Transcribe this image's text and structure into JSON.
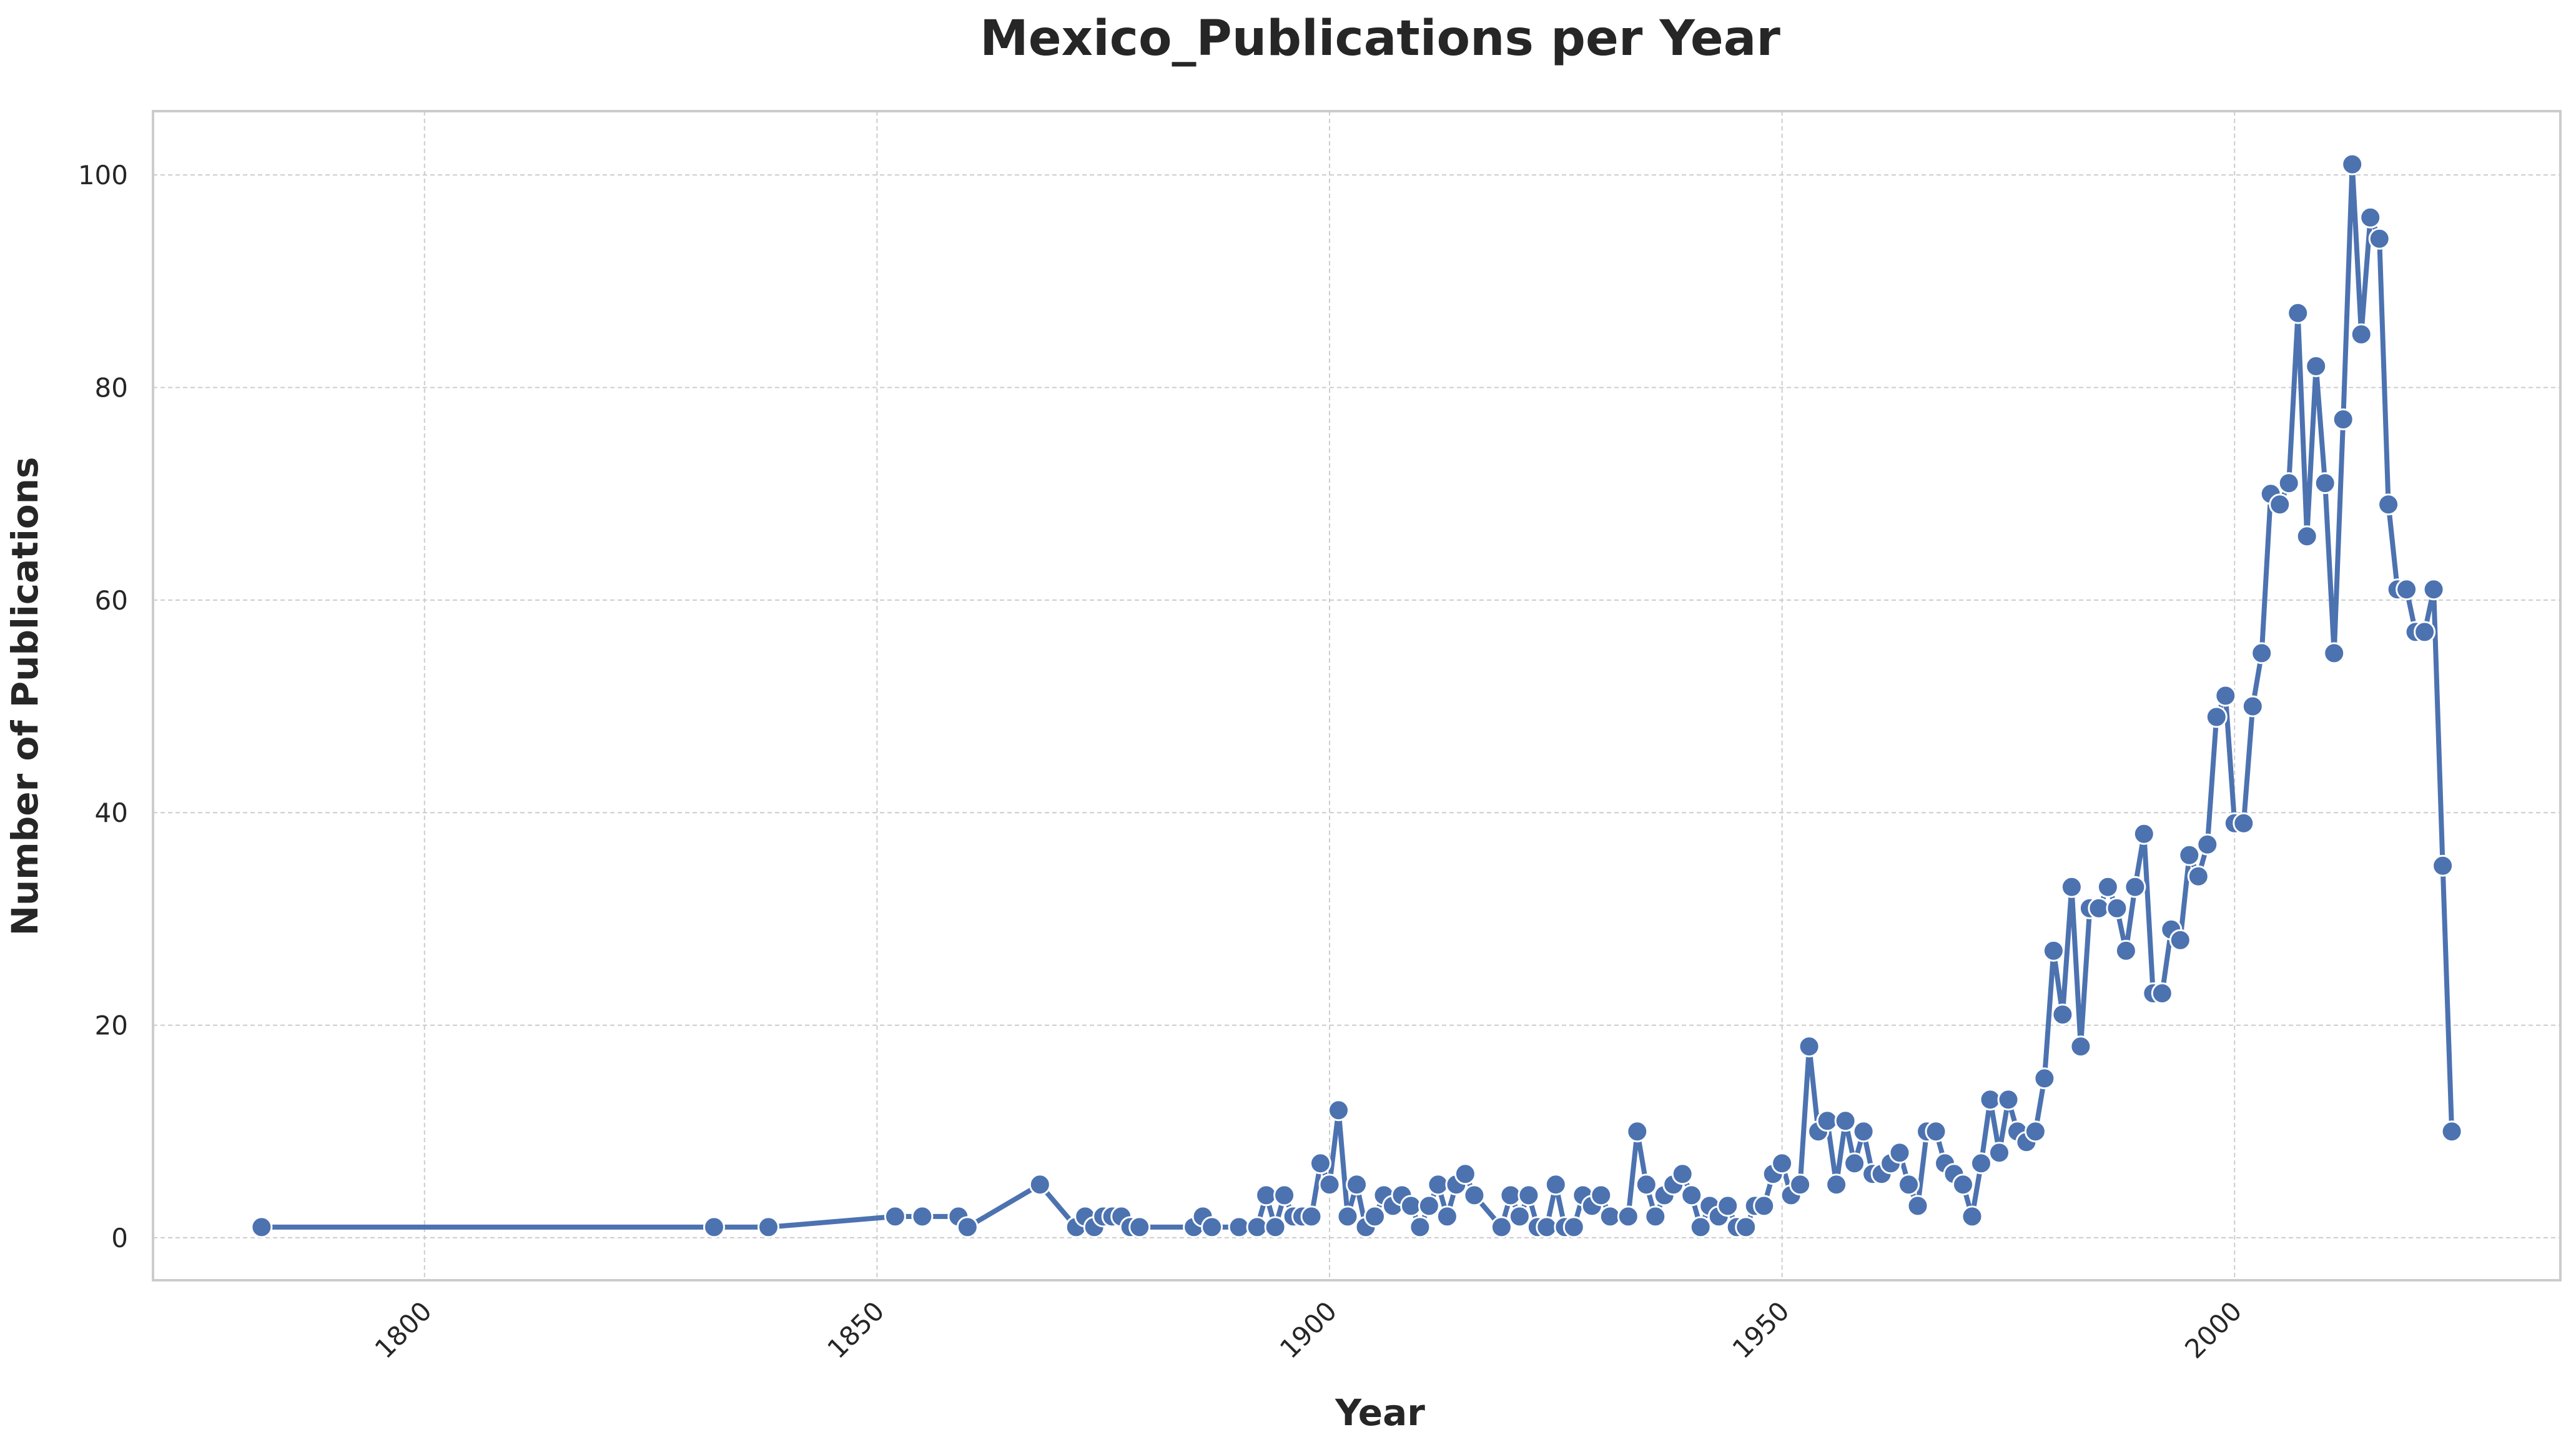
{
  "chart_data": {
    "type": "line",
    "title": "Mexico_Publications per Year",
    "xlabel": "Year",
    "ylabel": "Number of Publications",
    "xlim": [
      1770,
      2036
    ],
    "ylim": [
      -4,
      106
    ],
    "xticks": [
      1800,
      1850,
      1900,
      1950,
      2000
    ],
    "yticks": [
      0,
      20,
      40,
      60,
      80,
      100
    ],
    "grid": true,
    "legend": "none",
    "series_color": "#4c72b0",
    "marker_edge_color": "#ffffff",
    "grid_color": "#cccccc",
    "frame_color": "#cccccc",
    "series": [
      {
        "x": [
          1782,
          1832,
          1838,
          1852,
          1855,
          1859,
          1860,
          1868,
          1872,
          1873,
          1874,
          1875,
          1876,
          1877,
          1878,
          1879,
          1885,
          1886,
          1887,
          1890,
          1892,
          1893,
          1894,
          1895,
          1896,
          1897,
          1898,
          1899,
          1900,
          1901,
          1902,
          1903,
          1904,
          1905,
          1906,
          1907,
          1908,
          1909,
          1910,
          1911,
          1912,
          1913,
          1914,
          1915,
          1916,
          1919,
          1920,
          1921,
          1922,
          1923,
          1924,
          1925,
          1926,
          1927,
          1928,
          1929,
          1930,
          1931,
          1933,
          1934,
          1935,
          1936,
          1937,
          1938,
          1939,
          1940,
          1941,
          1942,
          1943,
          1944,
          1945,
          1946,
          1947,
          1948,
          1949,
          1950,
          1951,
          1952,
          1953,
          1954,
          1955,
          1956,
          1957,
          1958,
          1959,
          1960,
          1961,
          1962,
          1963,
          1964,
          1965,
          1966,
          1967,
          1968,
          1969,
          1970,
          1971,
          1972,
          1973,
          1974,
          1975,
          1976,
          1977,
          1978,
          1979,
          1980,
          1981,
          1982,
          1983,
          1984,
          1985,
          1986,
          1987,
          1988,
          1989,
          1990,
          1991,
          1992,
          1993,
          1994,
          1995,
          1996,
          1997,
          1998,
          1999,
          2000,
          2001,
          2002,
          2003,
          2004,
          2005,
          2006,
          2007,
          2008,
          2009,
          2010,
          2011,
          2012,
          2013,
          2014,
          2015,
          2016,
          2017,
          2018,
          2019,
          2020,
          2021,
          2022,
          2023,
          2024
        ],
        "y": [
          1,
          1,
          1,
          2,
          2,
          2,
          1,
          5,
          1,
          2,
          1,
          2,
          2,
          2,
          1,
          1,
          1,
          2,
          1,
          1,
          1,
          4,
          1,
          4,
          2,
          2,
          2,
          7,
          5,
          12,
          2,
          5,
          1,
          2,
          4,
          3,
          4,
          3,
          1,
          3,
          5,
          2,
          5,
          6,
          4,
          1,
          4,
          2,
          4,
          1,
          1,
          5,
          1,
          1,
          4,
          3,
          4,
          2,
          2,
          10,
          5,
          2,
          4,
          5,
          6,
          4,
          1,
          3,
          2,
          3,
          1,
          1,
          3,
          3,
          6,
          7,
          4,
          5,
          18,
          10,
          11,
          5,
          11,
          7,
          10,
          6,
          6,
          7,
          8,
          5,
          3,
          10,
          10,
          7,
          6,
          5,
          2,
          7,
          13,
          8,
          13,
          10,
          9,
          10,
          15,
          27,
          21,
          33,
          18,
          31,
          31,
          33,
          31,
          27,
          33,
          38,
          23,
          23,
          29,
          28,
          36,
          34,
          37,
          49,
          51,
          39,
          39,
          50,
          55,
          70,
          69,
          71,
          87,
          66,
          82,
          71,
          55,
          77,
          101,
          85,
          96,
          94,
          69,
          61,
          61,
          57,
          57,
          61,
          35,
          10
        ]
      }
    ]
  }
}
